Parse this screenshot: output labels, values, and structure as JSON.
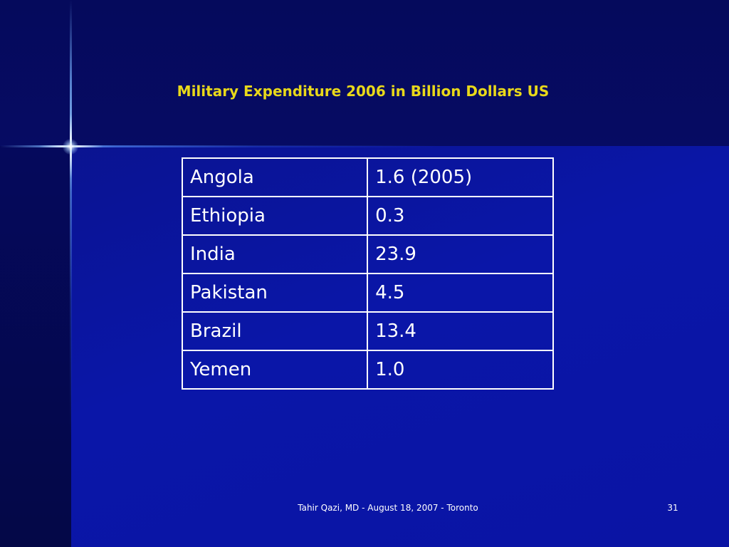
{
  "slide": {
    "title": "Military Expenditure 2006 in Billion Dollars US",
    "footer": "Tahir Qazi, MD - August 18, 2007 - Toronto",
    "page_number": "31",
    "colors": {
      "background": "#0a16a8",
      "title": "#e8d81a",
      "text": "#ffffff",
      "table_border": "#ffffff"
    }
  },
  "table": {
    "rows": [
      {
        "country": "Angola",
        "value": "1.6 (2005)"
      },
      {
        "country": "Ethiopia",
        "value": "0.3"
      },
      {
        "country": "India",
        "value": "23.9"
      },
      {
        "country": "Pakistan",
        "value": "4.5"
      },
      {
        "country": "Brazil",
        "value": "13.4"
      },
      {
        "country": "Yemen",
        "value": "1.0"
      }
    ]
  }
}
